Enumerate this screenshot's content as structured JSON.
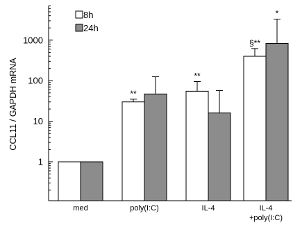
{
  "chart_data": {
    "type": "bar",
    "ylabel": "CCL11 / GAPDH mRNA",
    "yscale": "log",
    "ylim": [
      0.2,
      10000
    ],
    "yticks": [
      {
        "value": 1,
        "label": "1"
      },
      {
        "value": 10,
        "label": "10"
      },
      {
        "value": 100,
        "label": "100"
      },
      {
        "value": 1000,
        "label": "1000"
      }
    ],
    "categories": [
      {
        "lines": [
          "med"
        ]
      },
      {
        "lines": [
          "poly(I:C)"
        ]
      },
      {
        "lines": [
          "IL-4"
        ]
      },
      {
        "lines": [
          "IL-4",
          "+poly(I:C)"
        ]
      }
    ],
    "series": [
      {
        "name": "8h",
        "color": "#ffffff",
        "values": [
          1,
          30,
          55,
          400
        ],
        "error_upper": [
          null,
          35,
          95,
          620
        ]
      },
      {
        "name": "24h",
        "color": "#8c8c8c",
        "values": [
          1,
          47,
          16,
          830
        ],
        "error_upper": [
          null,
          125,
          57,
          3300
        ]
      }
    ],
    "annotations": [
      {
        "category": 1,
        "series": 0,
        "text": "**"
      },
      {
        "category": 2,
        "series": 0,
        "text": "**"
      },
      {
        "category": 3,
        "series": 0,
        "text": "§**"
      },
      {
        "category": 3,
        "series": 1,
        "text": "*"
      }
    ],
    "legend_position": "top-left",
    "grid": false
  }
}
